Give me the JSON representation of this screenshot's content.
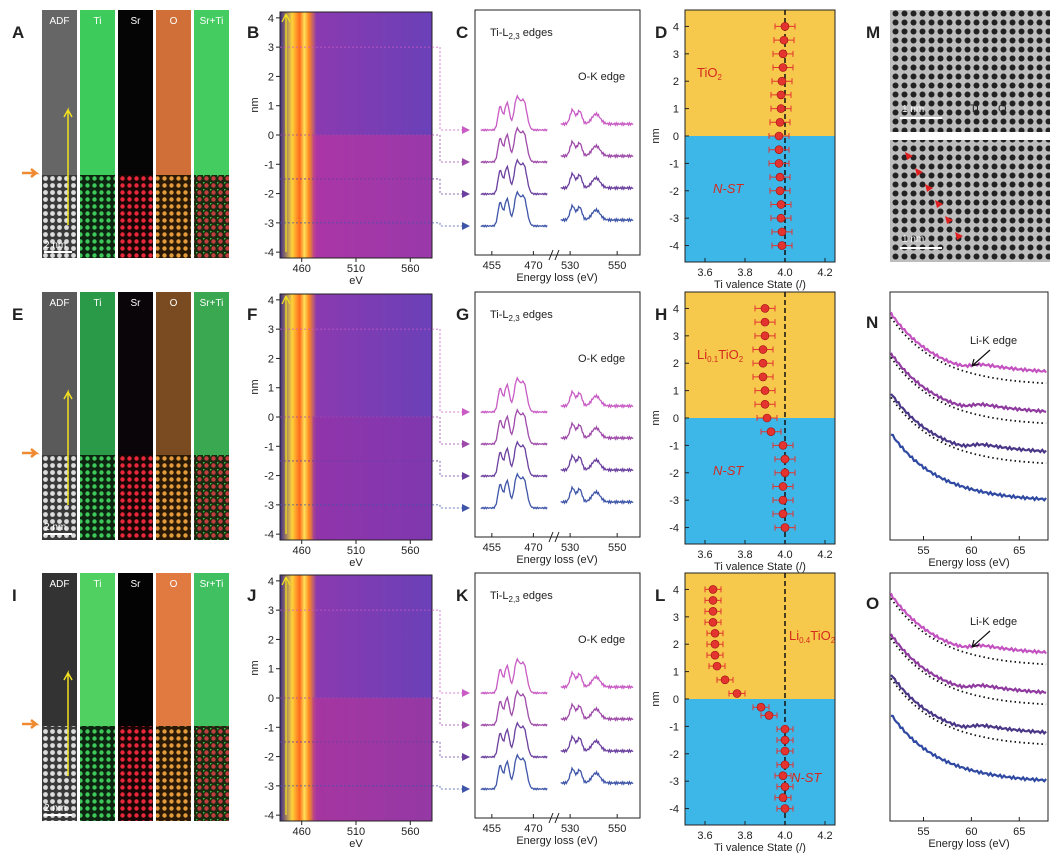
{
  "panel_letters": [
    "A",
    "B",
    "C",
    "D",
    "M",
    "E",
    "F",
    "G",
    "H",
    "N",
    "I",
    "J",
    "K",
    "L",
    "O"
  ],
  "image_rows": [
    {
      "channels": [
        "ADF",
        "Ti",
        "Sr",
        "O",
        "Sr+Ti"
      ],
      "scale_bar": "2 nm"
    },
    {
      "channels": [
        "ADF",
        "Ti",
        "Sr",
        "O",
        "Sr+Ti"
      ],
      "scale_bar": "2 nm"
    },
    {
      "channels": [
        "ADF",
        "Ti",
        "Sr",
        "O",
        "Sr+Ti"
      ],
      "scale_bar": "2 nm"
    }
  ],
  "hrtem": {
    "scale_bars": [
      "1 nm",
      "1 nm"
    ],
    "atom_labels": [
      "Ti",
      "O"
    ]
  },
  "chart_data": [
    {
      "type": "image",
      "xlabel": "eV",
      "ylabel": "nm",
      "xlim": [
        440,
        580
      ],
      "xticks": [
        460,
        510,
        560
      ],
      "ylim": [
        -4.2,
        4.2
      ],
      "yticks": [
        -4,
        -3,
        -2,
        -1,
        0,
        1,
        2,
        3,
        4
      ],
      "lower_color": "#d2309a"
    },
    {
      "type": "image",
      "xlabel": "eV",
      "ylabel": "nm",
      "xlim": [
        440,
        580
      ],
      "xticks": [
        460,
        510,
        560
      ],
      "ylim": [
        -4.2,
        4.2
      ],
      "yticks": [
        -4,
        -3,
        -2,
        -1,
        0,
        1,
        2,
        3,
        4
      ],
      "lower_color": "#9a2fa5"
    },
    {
      "type": "image",
      "xlabel": "eV",
      "ylabel": "nm",
      "xlim": [
        440,
        580
      ],
      "xticks": [
        460,
        510,
        560
      ],
      "ylim": [
        -4.2,
        4.2
      ],
      "yticks": [
        -4,
        -3,
        -2,
        -1,
        0,
        1,
        2,
        3,
        4
      ],
      "lower_color": "#c8308e"
    },
    {
      "type": "spectrum",
      "title_parts": [
        "Ti-L",
        "2,3",
        " edges"
      ],
      "annotation": "O-K edge",
      "xlabel": "Energy loss (eV)",
      "xlim": [
        [
          450,
          476
        ],
        [
          524,
          558
        ]
      ],
      "xticks": [
        455,
        470,
        530,
        550
      ],
      "colors": [
        "#c85bc4",
        "#9e4aa8",
        "#6a3f9e",
        "#3e55a8"
      ]
    },
    {
      "type": "spectrum",
      "title_parts": [
        "Ti-L",
        "2,3",
        " edges"
      ],
      "annotation": "O-K edge",
      "xlabel": "Energy loss (eV)",
      "xlim": [
        [
          450,
          476
        ],
        [
          524,
          558
        ]
      ],
      "xticks": [
        455,
        470,
        530,
        550
      ],
      "colors": [
        "#c85bc4",
        "#9e4aa8",
        "#6a3f9e",
        "#3e55a8"
      ]
    },
    {
      "type": "spectrum",
      "title_parts": [
        "Ti-L",
        "2,3",
        " edges"
      ],
      "annotation": "O-K edge",
      "xlabel": "Energy loss (eV)",
      "xlim": [
        [
          450,
          476
        ],
        [
          524,
          558
        ]
      ],
      "xticks": [
        455,
        470,
        530,
        550
      ],
      "colors": [
        "#c85bc4",
        "#9e4aa8",
        "#6a3f9e",
        "#3e55a8"
      ]
    },
    {
      "type": "scatter",
      "xlabel": "Ti valence State (/)",
      "ylabel": "nm",
      "xlim": [
        3.5,
        4.25
      ],
      "ylim": [
        -4.6,
        4.6
      ],
      "xticks": [
        3.6,
        3.8,
        {
          "value": 4,
          "label": "4.0"
        },
        4.2
      ],
      "yticks": [
        -4,
        -3,
        -2,
        -1,
        0,
        1,
        2,
        3,
        4
      ],
      "ref_x": 4,
      "region_labels": [
        [
          "TiO",
          "2"
        ],
        [
          "N-ST"
        ]
      ],
      "colors": {
        "top": "#f6c94c",
        "bottom": "#3db7e8",
        "marker": "#e3342f"
      },
      "y": [
        4,
        3.5,
        3,
        2.5,
        2,
        1.5,
        1,
        0.5,
        0,
        -0.5,
        -1,
        -1.5,
        -2,
        -2.5,
        -3,
        -3.5,
        -4
      ],
      "x": [
        4.0,
        3.995,
        3.99,
        3.99,
        3.985,
        3.98,
        3.98,
        3.975,
        3.97,
        3.97,
        3.97,
        3.975,
        3.975,
        3.98,
        3.98,
        3.985,
        3.985
      ],
      "xerr": [
        0.05,
        0.05,
        0.05,
        0.05,
        0.05,
        0.05,
        0.05,
        0.05,
        0.05,
        0.05,
        0.05,
        0.05,
        0.05,
        0.05,
        0.05,
        0.05,
        0.05
      ]
    },
    {
      "type": "scatter",
      "xlabel": "Ti valence State (/)",
      "ylabel": "nm",
      "xlim": [
        3.5,
        4.25
      ],
      "ylim": [
        -4.6,
        4.6
      ],
      "xticks": [
        3.6,
        3.8,
        {
          "value": 4,
          "label": "4.0"
        },
        4.2
      ],
      "yticks": [
        -4,
        -3,
        -2,
        -1,
        0,
        1,
        2,
        3,
        4
      ],
      "ref_x": 4,
      "region_labels": [
        [
          "Li",
          "0.1",
          "TiO",
          "2"
        ],
        [
          "N-ST"
        ]
      ],
      "colors": {
        "top": "#f6c94c",
        "bottom": "#3db7e8",
        "marker": "#e3342f"
      },
      "y": [
        4,
        3.5,
        3,
        2.5,
        2,
        1.5,
        1,
        0.5,
        0,
        -0.5,
        -1,
        -1.5,
        -2,
        -2.5,
        -3,
        -3.5,
        -4
      ],
      "x": [
        3.9,
        3.9,
        3.9,
        3.89,
        3.89,
        3.89,
        3.9,
        3.9,
        3.91,
        3.93,
        3.99,
        4.0,
        4.0,
        3.99,
        3.99,
        3.99,
        4.0
      ],
      "xerr": [
        0.05,
        0.05,
        0.05,
        0.05,
        0.05,
        0.05,
        0.05,
        0.05,
        0.05,
        0.05,
        0.05,
        0.05,
        0.05,
        0.05,
        0.05,
        0.05,
        0.05
      ]
    },
    {
      "type": "scatter",
      "xlabel": "Ti valence State (/)",
      "ylabel": "nm",
      "xlim": [
        3.5,
        4.25
      ],
      "ylim": [
        -4.6,
        4.6
      ],
      "xticks": [
        3.6,
        3.8,
        {
          "value": 4,
          "label": "4.0"
        },
        4.2
      ],
      "yticks": [
        -4,
        -3,
        -2,
        -1,
        0,
        1,
        2,
        3,
        4
      ],
      "ref_x": 4,
      "region_labels": [
        [
          "Li",
          "0.4",
          "TiO",
          "2"
        ],
        [
          "N-ST"
        ]
      ],
      "colors": {
        "top": "#f6c94c",
        "bottom": "#3db7e8",
        "marker": "#e3342f"
      },
      "y": [
        4,
        3.6,
        3.2,
        2.8,
        2.4,
        2,
        1.6,
        1.2,
        0.7,
        0.2,
        -0.3,
        -0.6,
        -1.1,
        -1.5,
        -1.9,
        -2.4,
        -2.8,
        -3.2,
        -3.6,
        -4
      ],
      "x": [
        3.64,
        3.64,
        3.64,
        3.64,
        3.65,
        3.65,
        3.65,
        3.66,
        3.7,
        3.76,
        3.88,
        3.92,
        4.0,
        4.0,
        4.0,
        4.0,
        3.99,
        4.0,
        3.99,
        4.0
      ],
      "xerr": [
        0.04,
        0.04,
        0.04,
        0.04,
        0.04,
        0.04,
        0.04,
        0.04,
        0.04,
        0.04,
        0.04,
        0.04,
        0.04,
        0.04,
        0.04,
        0.04,
        0.04,
        0.04,
        0.04,
        0.04
      ]
    },
    {
      "type": "curves",
      "annotation": "Li-K edge",
      "xlabel": "Energy loss (eV)",
      "xlim": [
        51.5,
        68
      ],
      "xticks": [
        55,
        60,
        65
      ],
      "colors": [
        "#c352c0",
        "#8e3a9e",
        "#4a3686",
        "#2f49a2"
      ]
    },
    {
      "type": "curves",
      "annotation": "Li-K edge",
      "xlabel": "Energy loss (eV)",
      "xlim": [
        51.5,
        68
      ],
      "xticks": [
        55,
        60,
        65
      ],
      "colors": [
        "#c352c0",
        "#8e3a9e",
        "#4a3686",
        "#2f49a2"
      ]
    }
  ]
}
